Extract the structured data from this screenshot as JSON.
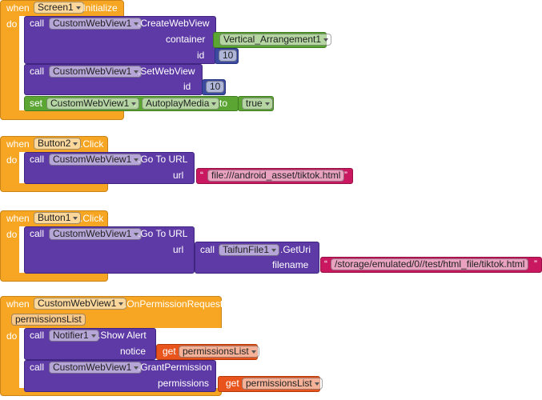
{
  "events": [
    {
      "when": "when",
      "component": "Screen1",
      "event": ".Initialize",
      "do": "do",
      "statements": [
        {
          "keyword": "call",
          "component": "CustomWebView1",
          "method": ".CreateWebView",
          "args": [
            {
              "name": "container",
              "value": "Vertical_Arrangement1"
            },
            {
              "name": "id",
              "value": 10
            }
          ]
        },
        {
          "keyword": "call",
          "component": "CustomWebView1",
          "method": ".SetWebView",
          "args": [
            {
              "name": "id",
              "value": 10
            }
          ]
        },
        {
          "keyword": "set",
          "component": "CustomWebView1",
          "dot": ".",
          "property": "AutoplayMedia",
          "to": "to",
          "value": "true"
        }
      ]
    },
    {
      "when": "when",
      "component": "Button2",
      "event": ".Click",
      "do": "do",
      "statements": [
        {
          "keyword": "call",
          "component": "CustomWebView1",
          "method": ".Go To URL",
          "args": [
            {
              "name": "url",
              "value": "file:///android_asset/tiktok.html"
            }
          ]
        }
      ]
    },
    {
      "when": "when",
      "component": "Button1",
      "event": ".Click",
      "do": "do",
      "statements": [
        {
          "keyword": "call",
          "component": "CustomWebView1",
          "method": ".Go To URL",
          "args": [
            {
              "name": "url",
              "value": {
                "keyword": "call",
                "component": "TaifunFile1",
                "method": ".GetUri",
                "args": [
                  {
                    "name": "filename",
                    "value": "/storage/emulated/0//test/html_file/tiktok.html"
                  }
                ]
              }
            }
          ]
        }
      ]
    },
    {
      "when": "when",
      "component": "CustomWebView1",
      "event": ".OnPermissionRequest",
      "parameter": "permissionsList",
      "do": "do",
      "statements": [
        {
          "keyword": "call",
          "component": "Notifier1",
          "method": ".Show Alert",
          "args": [
            {
              "name": "notice",
              "get": "get",
              "value": "permissionsList"
            }
          ]
        },
        {
          "keyword": "call",
          "component": "CustomWebView1",
          "method": ".GrantPermission",
          "args": [
            {
              "name": "permissions",
              "get": "get",
              "value": "permissionsList"
            }
          ]
        }
      ]
    }
  ],
  "quotes": [
    "“",
    "”"
  ]
}
